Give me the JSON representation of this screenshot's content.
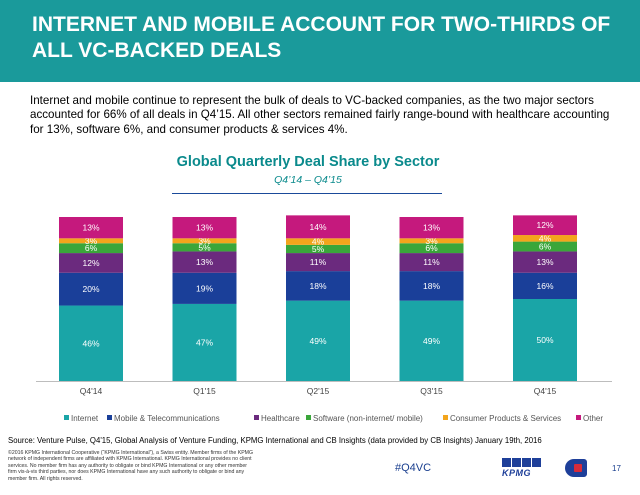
{
  "header": {
    "title": "INTERNET AND MOBILE ACCOUNT FOR TWO-THIRDS OF ALL VC-BACKED DEALS"
  },
  "intro": "Internet and mobile continue to represent the bulk of deals to VC-backed companies, as the two major sectors accounted for 66% of all deals in Q4’15. All other sectors remained fairly range-bound with healthcare accounting for 13%, software 6%, and consumer products & services 4%.",
  "chart_data": {
    "type": "bar",
    "stacked": true,
    "title": "Global Quarterly Deal Share by Sector",
    "subtitle": "Q4’14 – Q4’15",
    "categories": [
      "Q4'14",
      "Q1'15",
      "Q2'15",
      "Q3'15",
      "Q4'15"
    ],
    "ylim": [
      0,
      100
    ],
    "series": [
      {
        "name": "Internet",
        "color": "#1aa5a7",
        "values": [
          46,
          47,
          49,
          49,
          50
        ],
        "labels": [
          "46%",
          "47%",
          "49%",
          "49%",
          "50%"
        ]
      },
      {
        "name": "Mobile & Telecommunications",
        "color": "#1a3f99",
        "values": [
          20,
          19,
          18,
          18,
          16
        ],
        "labels": [
          "20%",
          "19%",
          "18%",
          "18%",
          "16%"
        ]
      },
      {
        "name": "Healthcare",
        "color": "#6b2a7e",
        "values": [
          12,
          13,
          11,
          11,
          13
        ],
        "labels": [
          "12%",
          "13%",
          "11%",
          "11%",
          "13%"
        ]
      },
      {
        "name": "Software (non-internet/ mobile)",
        "color": "#3aa63a",
        "values": [
          6,
          5,
          5,
          6,
          6
        ],
        "labels": [
          "6%",
          "5%",
          "5%",
          "6%",
          "6%"
        ]
      },
      {
        "name": "Consumer Products & Services",
        "color": "#f3a51c",
        "values": [
          3,
          3,
          4,
          3,
          4
        ],
        "labels": [
          "3%",
          "3%",
          "4%",
          "3%",
          "4%"
        ]
      },
      {
        "name": "Other",
        "color": "#c5197d",
        "values": [
          13,
          13,
          14,
          13,
          12
        ],
        "labels": [
          "13%",
          "13%",
          "14%",
          "13%",
          "12%"
        ]
      }
    ],
    "legend_position": "bottom",
    "grid": false
  },
  "footer": {
    "source": "Source: Venture Pulse, Q4'15, Global Analysis of Venture Funding, KPMG International and CB Insights (data provided by CB Insights) January 19th, 2016",
    "legal": "©2016 KPMG International Cooperative (“KPMG International”), a Swiss entity. Member firms of the KPMG network of independent firms are affiliated with KPMG International. KPMG International provides no client services. No member firm has any authority to obligate or bind KPMG International or any other member firm vis-à-vis third parties, nor does KPMG International have any such authority to obligate or bind any member firm. All rights reserved.",
    "hashtag": "#Q4VC",
    "kpmg_logo_text": "KPMG",
    "page_number": "17"
  }
}
